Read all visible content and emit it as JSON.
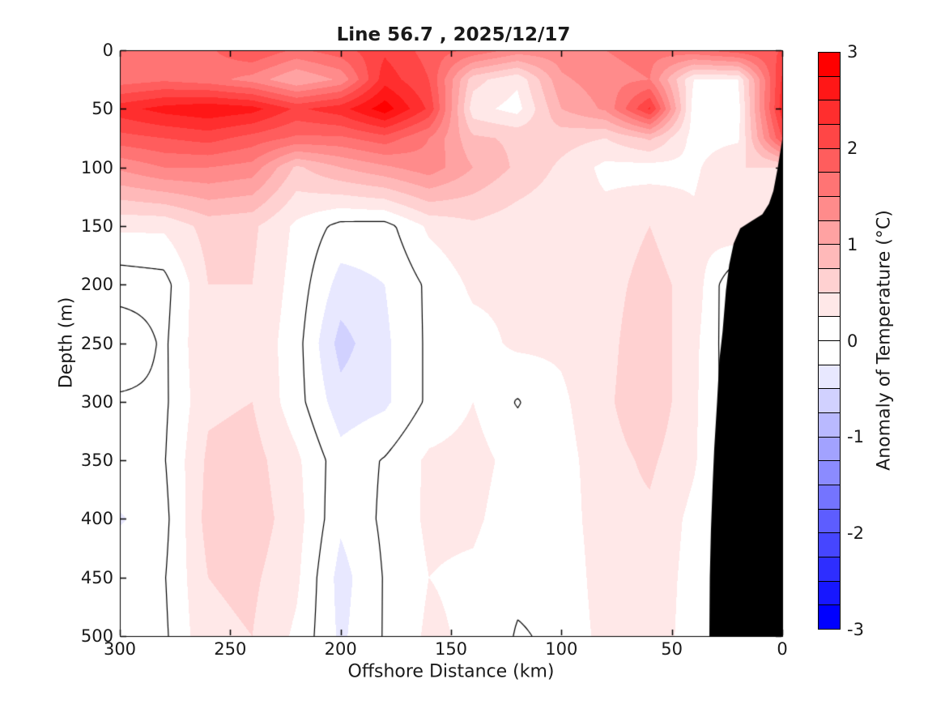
{
  "title": "Line 56.7 , 2025/12/17",
  "axes": {
    "x": {
      "label": "Offshore Distance (km)",
      "ticks": [
        "300",
        "250",
        "200",
        "150",
        "100",
        "50",
        "0"
      ],
      "range": [
        300,
        0
      ],
      "reversed": true
    },
    "y": {
      "label": "Depth (m)",
      "ticks": [
        "0",
        "50",
        "100",
        "150",
        "200",
        "250",
        "300",
        "350",
        "400",
        "450",
        "500"
      ],
      "range": [
        0,
        500
      ],
      "inverted": true
    }
  },
  "colorbar": {
    "label": "Anomaly of Temperature (°C)",
    "ticks": [
      "3",
      "2",
      "1",
      "0",
      "-1",
      "-2",
      "-3"
    ],
    "range": [
      -3,
      3
    ],
    "segment_step": 0.25,
    "segment_colors_top_to_bottom": [
      "#FF0000",
      "#FF1717",
      "#FF2E2E",
      "#FF4646",
      "#FF5D5D",
      "#FF7474",
      "#FF8B8B",
      "#FFA2A2",
      "#FFB9B9",
      "#FFD1D1",
      "#FFE8E8",
      "#FFFFFF",
      "#FFFFFF",
      "#E8E8FF",
      "#D1D1FF",
      "#B9B9FF",
      "#A2A2FF",
      "#8B8BFF",
      "#7474FF",
      "#5D5DFF",
      "#4646FF",
      "#2E2EFF",
      "#1717FF",
      "#0000FF"
    ]
  },
  "chart_data": {
    "type": "filled_contour",
    "title": "Line 56.7 , 2025/12/17",
    "xlabel": "Offshore Distance (km)",
    "ylabel": "Depth (m)",
    "colorbar_label": "Anomaly of Temperature (°C)",
    "x_km": [
      300,
      280,
      260,
      240,
      220,
      200,
      180,
      160,
      140,
      120,
      100,
      80,
      60,
      40,
      20,
      0
    ],
    "depth_m": [
      0,
      25,
      50,
      75,
      100,
      150,
      200,
      250,
      300,
      350,
      400,
      450,
      500
    ],
    "anomaly_degC": [
      [
        1.6,
        1.5,
        1.7,
        2.0,
        1.7,
        1.9,
        2.2,
        1.9,
        1.7,
        1.4,
        1.4,
        1.5,
        1.6,
        1.7,
        1.9,
        2.0
      ],
      [
        1.6,
        1.7,
        1.6,
        1.4,
        1.0,
        1.3,
        2.4,
        2.0,
        0.6,
        0.3,
        1.2,
        1.4,
        1.5,
        0.25,
        0.25,
        2.3
      ],
      [
        2.4,
        2.6,
        2.7,
        2.6,
        2.2,
        2.4,
        2.9,
        2.2,
        0.35,
        0.15,
        1.0,
        1.3,
        2.3,
        0.12,
        0.15,
        2.4
      ],
      [
        1.9,
        2.0,
        2.1,
        1.9,
        1.7,
        1.7,
        1.9,
        1.5,
        0.8,
        0.7,
        0.6,
        0.5,
        0.8,
        0.15,
        0.2,
        2.0
      ],
      [
        1.3,
        1.5,
        1.5,
        1.4,
        0.7,
        1.0,
        1.2,
        1.4,
        1.0,
        0.7,
        0.45,
        0.18,
        0.15,
        0.2,
        0.5,
        0.5
      ],
      [
        0.3,
        0.3,
        0.6,
        0.55,
        0.2,
        -0.08,
        -0.1,
        0.3,
        0.45,
        0.35,
        0.3,
        0.35,
        0.5,
        0.3,
        0.5,
        0.3
      ],
      [
        -0.15,
        -0.1,
        0.5,
        0.5,
        0.15,
        -0.35,
        -0.25,
        0.05,
        0.3,
        0.3,
        0.3,
        0.4,
        0.6,
        0.4,
        -0.3,
        0.05
      ],
      [
        0.25,
        -0.05,
        0.5,
        0.45,
        0.1,
        -0.6,
        -0.3,
        0.05,
        0.15,
        0.3,
        0.3,
        0.42,
        0.68,
        0.32,
        -0.25,
        0.05
      ],
      [
        -0.05,
        -0.05,
        0.45,
        0.5,
        0.1,
        -0.4,
        -0.3,
        0.05,
        0.25,
        -0.02,
        0.2,
        0.45,
        0.7,
        0.3,
        -0.22,
        0.05
      ],
      [
        -0.05,
        -0.02,
        0.55,
        0.6,
        0.3,
        -0.15,
        0.02,
        0.3,
        0.35,
        0.15,
        0.15,
        0.4,
        0.55,
        0.28,
        -0.18,
        0.05
      ],
      [
        -0.28,
        -0.08,
        0.6,
        0.65,
        0.35,
        -0.2,
        0.05,
        0.3,
        0.3,
        0.1,
        0.1,
        0.42,
        0.45,
        0.18,
        -0.1,
        0.05
      ],
      [
        -0.05,
        -0.02,
        0.5,
        0.55,
        0.3,
        -0.35,
        0.02,
        0.25,
        0.2,
        0.05,
        0.05,
        0.4,
        0.42,
        0.15,
        0.02,
        0.05
      ],
      [
        -0.05,
        -0.05,
        0.45,
        0.5,
        0.2,
        -0.3,
        0.02,
        0.3,
        0.2,
        -0.02,
        0.04,
        0.35,
        0.42,
        0.12,
        0.05,
        0.05
      ]
    ],
    "level_step": 0.25,
    "color_range": [
      -3,
      3
    ],
    "contour_line_levels": [
      0
    ],
    "contour_line_color": "#000000",
    "bathymetry_mask_km_depth": [
      [
        0,
        76
      ],
      [
        2,
        100
      ],
      [
        4,
        120
      ],
      [
        6,
        131
      ],
      [
        9,
        140
      ],
      [
        14,
        146
      ],
      [
        19,
        152
      ],
      [
        22,
        165
      ],
      [
        24,
        183
      ],
      [
        25.5,
        205
      ],
      [
        27,
        240
      ],
      [
        28.5,
        265
      ],
      [
        29.5,
        300
      ],
      [
        30.8,
        340
      ],
      [
        31.5,
        370
      ],
      [
        32.3,
        410
      ],
      [
        32.8,
        450
      ],
      [
        33,
        500
      ]
    ],
    "mask_color": "#000000",
    "background_color": "#ffffff",
    "axis_color": "#000000"
  }
}
